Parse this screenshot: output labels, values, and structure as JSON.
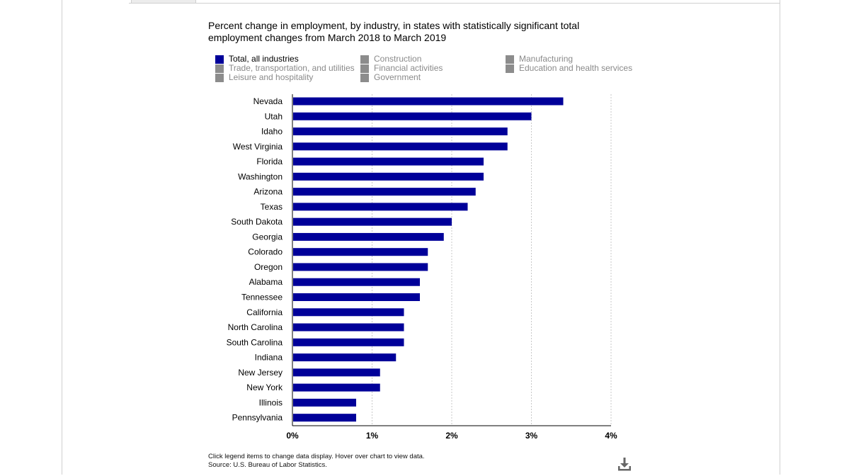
{
  "chart_data": {
    "type": "bar",
    "orientation": "horizontal",
    "title": "Percent change in employment, by industry, in states with statistically significant total employment changes from March 2018 to March 2019",
    "title_lines": [
      "Percent change in employment, by industry, in states with statistically significant total",
      "employment changes from March 2018 to March 2019"
    ],
    "categories": [
      "Nevada",
      "Utah",
      "Idaho",
      "West Virginia",
      "Florida",
      "Washington",
      "Arizona",
      "Texas",
      "South Dakota",
      "Georgia",
      "Colorado",
      "Oregon",
      "Alabama",
      "Tennessee",
      "California",
      "North Carolina",
      "South Carolina",
      "Indiana",
      "New Jersey",
      "New York",
      "Illinois",
      "Pennsylvania"
    ],
    "series": [
      {
        "name": "Total, all industries",
        "values": [
          3.4,
          3.0,
          2.7,
          2.7,
          2.4,
          2.4,
          2.3,
          2.2,
          2.0,
          1.9,
          1.7,
          1.7,
          1.6,
          1.6,
          1.4,
          1.4,
          1.4,
          1.3,
          1.1,
          1.1,
          0.8,
          0.8
        ]
      }
    ],
    "xlim": [
      0,
      4
    ],
    "x_ticks": [
      "0%",
      "1%",
      "2%",
      "3%",
      "4%"
    ],
    "grid": "vertical dotted",
    "legend_position": "top",
    "legend": [
      {
        "label": "Total, all industries",
        "active": true,
        "color": "#000099"
      },
      {
        "label": "Construction",
        "active": false,
        "color": "#8c8c8c"
      },
      {
        "label": "Manufacturing",
        "active": false,
        "color": "#8c8c8c"
      },
      {
        "label": "Trade, transportation, and utilities",
        "active": false,
        "color": "#8c8c8c"
      },
      {
        "label": "Financial activities",
        "active": false,
        "color": "#8c8c8c"
      },
      {
        "label": "Education and health services",
        "active": false,
        "color": "#8c8c8c"
      },
      {
        "label": "Leisure and hospitality",
        "active": false,
        "color": "#8c8c8c"
      },
      {
        "label": "Government",
        "active": false,
        "color": "#8c8c8c"
      }
    ],
    "bar_color": "#000099"
  },
  "footnote": {
    "line1": "Click legend items to change data display. Hover over chart to view data.",
    "line2": "Source: U.S. Bureau of Labor Statistics."
  },
  "icons": {
    "download": "download-icon"
  }
}
